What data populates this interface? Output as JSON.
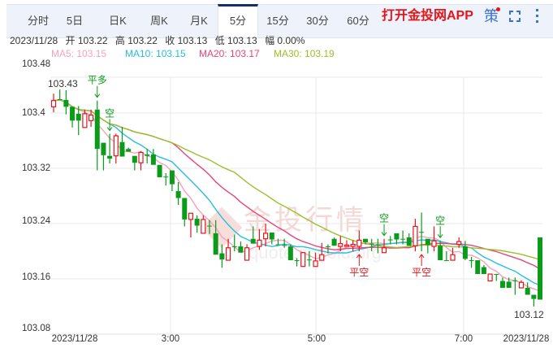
{
  "tabs": [
    {
      "label": "分时",
      "active": false
    },
    {
      "label": "5日",
      "active": false
    },
    {
      "label": "日K",
      "active": false
    },
    {
      "label": "周K",
      "active": false
    },
    {
      "label": "月K",
      "active": false
    },
    {
      "label": "5分",
      "active": true
    },
    {
      "label": "15分",
      "active": false
    },
    {
      "label": "30分",
      "active": false
    },
    {
      "label": "60分",
      "active": false
    }
  ],
  "app_link": "打开金投网APP",
  "strategy_label": "策",
  "icons": {
    "fullscreen": "fullscreen-icon",
    "more": "more-vertical-icon"
  },
  "info": {
    "date": "2023/11/28",
    "open": "开 103.22",
    "high": "高 103.22",
    "close": "收 103.13",
    "low": "低 103.13",
    "change": "幅 0.00%"
  },
  "ma": [
    {
      "label": "MA5: 103.15",
      "color": "#f7a1bc"
    },
    {
      "label": "MA10: 103.15",
      "color": "#27bde0"
    },
    {
      "label": "MA20: 103.17",
      "color": "#e8457a"
    },
    {
      "label": "MA30: 103.19",
      "color": "#9bc02b"
    }
  ],
  "watermark": {
    "title": "金投行情",
    "url": "quote.cngold.org"
  },
  "chart_data": {
    "type": "candlestick",
    "interval": "5分",
    "y_ticks": [
      "103.48",
      "103.4",
      "103.32",
      "103.24",
      "103.16",
      "103.08"
    ],
    "ylim": [
      103.08,
      103.48
    ],
    "x_ticks": [
      "2023/11/28",
      "3:00",
      "5:00",
      "7:00",
      "2023/11/28"
    ],
    "grid": true,
    "colors": {
      "up": "#e8141b",
      "down": "#0a9b1a"
    },
    "ohlc_order": [
      "open",
      "high",
      "low",
      "close"
    ],
    "candles": [
      [
        103.409,
        103.428,
        103.401,
        103.418
      ],
      [
        103.42,
        103.434,
        103.419,
        103.42
      ],
      [
        103.419,
        103.433,
        103.398,
        103.409
      ],
      [
        103.409,
        103.41,
        103.379,
        103.389
      ],
      [
        103.399,
        103.41,
        103.368,
        103.389
      ],
      [
        103.379,
        103.405,
        103.379,
        103.399
      ],
      [
        103.389,
        103.405,
        103.38,
        103.397
      ],
      [
        103.405,
        103.418,
        103.317,
        103.348
      ],
      [
        103.357,
        103.357,
        103.317,
        103.339
      ],
      [
        103.338,
        103.37,
        103.327,
        103.334
      ],
      [
        103.338,
        103.37,
        103.327,
        103.367
      ],
      [
        103.358,
        103.38,
        103.337,
        103.337
      ],
      [
        103.348,
        103.35,
        103.344,
        103.344
      ],
      [
        103.338,
        103.338,
        103.317,
        103.328
      ],
      [
        103.328,
        103.345,
        103.317,
        103.343
      ],
      [
        103.34,
        103.348,
        103.327,
        103.338
      ],
      [
        103.34,
        103.348,
        103.325,
        103.325
      ],
      [
        103.325,
        103.325,
        103.307,
        103.307
      ],
      [
        103.308,
        103.313,
        103.295,
        103.308
      ],
      [
        103.317,
        103.317,
        103.287,
        103.297
      ],
      [
        103.287,
        103.3,
        103.267,
        103.277
      ],
      [
        103.277,
        103.277,
        103.236,
        103.246
      ],
      [
        103.246,
        103.255,
        103.22,
        103.255
      ],
      [
        103.247,
        103.252,
        103.227,
        103.237
      ],
      [
        103.226,
        103.252,
        103.226,
        103.246
      ],
      [
        103.237,
        103.245,
        103.225,
        103.237
      ],
      [
        103.226,
        103.245,
        103.195,
        103.195
      ],
      [
        103.197,
        103.21,
        103.176,
        103.188
      ],
      [
        103.187,
        103.218,
        103.187,
        103.205
      ],
      [
        103.207,
        103.224,
        103.2,
        103.207
      ],
      [
        103.207,
        103.214,
        103.198,
        103.198
      ],
      [
        103.187,
        103.21,
        103.187,
        103.205
      ],
      [
        103.218,
        103.236,
        103.211,
        103.211
      ],
      [
        103.207,
        103.232,
        103.202,
        103.216
      ],
      [
        103.218,
        103.24,
        103.207,
        103.226
      ],
      [
        103.227,
        103.227,
        103.21,
        103.217
      ],
      [
        103.21,
        103.218,
        103.21,
        103.21
      ],
      [
        103.209,
        103.218,
        103.205,
        103.209
      ],
      [
        103.207,
        103.21,
        103.187,
        103.187
      ],
      [
        103.187,
        103.19,
        103.178,
        103.187
      ],
      [
        103.178,
        103.198,
        103.178,
        103.198
      ],
      [
        103.188,
        103.2,
        103.178,
        103.188
      ],
      [
        103.178,
        103.198,
        103.178,
        103.186
      ],
      [
        103.187,
        103.212,
        103.187,
        103.195
      ],
      [
        103.207,
        103.21,
        103.197,
        103.207
      ],
      [
        103.218,
        103.22,
        103.208,
        103.208
      ],
      [
        103.207,
        103.222,
        103.2,
        103.211
      ],
      [
        103.207,
        103.216,
        103.207,
        103.209
      ],
      [
        103.207,
        103.216,
        103.2,
        103.21
      ],
      [
        103.207,
        103.23,
        103.2,
        103.216
      ],
      [
        103.218,
        103.218,
        103.21,
        103.213
      ],
      [
        103.211,
        103.218,
        103.2,
        103.211
      ],
      [
        103.21,
        103.218,
        103.197,
        103.21
      ],
      [
        103.198,
        103.218,
        103.198,
        103.205
      ],
      [
        103.217,
        103.222,
        103.21,
        103.217
      ],
      [
        103.226,
        103.226,
        103.21,
        103.217
      ],
      [
        103.218,
        103.23,
        103.21,
        103.218
      ],
      [
        103.22,
        103.226,
        103.208,
        103.208
      ],
      [
        103.208,
        103.247,
        103.2,
        103.236
      ],
      [
        103.228,
        103.256,
        103.2,
        103.228
      ],
      [
        103.218,
        103.218,
        103.197,
        103.209
      ],
      [
        103.207,
        103.236,
        103.2,
        103.215
      ],
      [
        103.208,
        103.215,
        103.187,
        103.187
      ],
      [
        103.187,
        103.2,
        103.187,
        103.187
      ],
      [
        103.187,
        103.205,
        103.187,
        103.195
      ],
      [
        103.21,
        103.22,
        103.205,
        103.214
      ],
      [
        103.207,
        103.215,
        103.187,
        103.189
      ],
      [
        103.187,
        103.192,
        103.176,
        103.187
      ],
      [
        103.187,
        103.187,
        103.167,
        103.167
      ],
      [
        103.177,
        103.18,
        103.167,
        103.167
      ],
      [
        103.157,
        103.167,
        103.157,
        103.167
      ],
      [
        103.167,
        103.167,
        103.157,
        103.167
      ],
      [
        103.157,
        103.162,
        103.147,
        103.147
      ],
      [
        103.156,
        103.162,
        103.147,
        103.147
      ],
      [
        103.158,
        103.162,
        103.137,
        103.158
      ],
      [
        103.147,
        103.158,
        103.147,
        103.155
      ],
      [
        103.147,
        103.155,
        103.137,
        103.137
      ],
      [
        103.137,
        103.137,
        103.12,
        103.131
      ],
      [
        103.22,
        103.22,
        103.13,
        103.13
      ]
    ],
    "annotations": [
      {
        "text": "103.43",
        "candle": 2,
        "at": "high"
      },
      {
        "text": "103.12",
        "candle": 77,
        "at": "low"
      }
    ],
    "signals": [
      {
        "text": "平多",
        "candle": 7,
        "side": "above",
        "color": "#0a9b1a"
      },
      {
        "text": "空",
        "candle": 9,
        "side": "above",
        "color": "#0a9b1a"
      },
      {
        "text": "平空",
        "candle": 49,
        "side": "below",
        "color": "#e8141b"
      },
      {
        "text": "空",
        "candle": 53,
        "side": "above",
        "color": "#0a9b1a"
      },
      {
        "text": "平空",
        "candle": 59,
        "side": "below",
        "color": "#e8141b"
      },
      {
        "text": "空",
        "candle": 62,
        "side": "above",
        "color": "#0a9b1a"
      }
    ],
    "ma_periods": [
      5,
      10,
      20,
      30
    ]
  }
}
